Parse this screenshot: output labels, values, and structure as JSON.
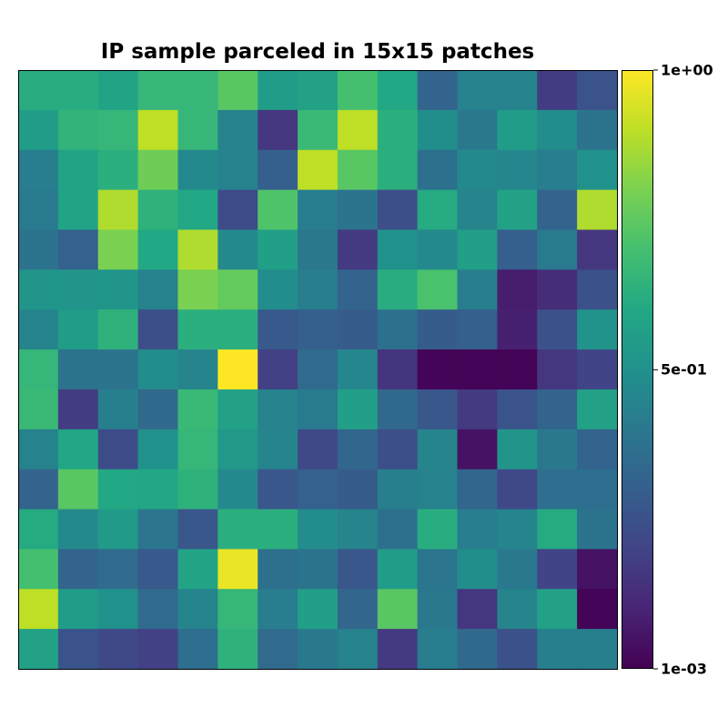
{
  "chart_data": {
    "type": "heatmap",
    "title": "IP sample parceled in 15x15 patches",
    "colormap": "viridis",
    "rows": 15,
    "cols": 15,
    "vmin": 0.001,
    "vmax": 1.0,
    "colorbar": {
      "position": "right",
      "ticks": [
        {
          "value": 1.0,
          "label": "1e+00"
        },
        {
          "value": 0.5,
          "label": "5e-01"
        },
        {
          "value": 0.001,
          "label": "1e-03"
        }
      ]
    },
    "values": [
      [
        0.62,
        0.62,
        0.58,
        0.66,
        0.66,
        0.74,
        0.55,
        0.57,
        0.7,
        0.6,
        0.32,
        0.44,
        0.44,
        0.18,
        0.26
      ],
      [
        0.55,
        0.65,
        0.66,
        0.9,
        0.66,
        0.44,
        0.16,
        0.67,
        0.9,
        0.63,
        0.49,
        0.4,
        0.55,
        0.48,
        0.38
      ],
      [
        0.42,
        0.58,
        0.63,
        0.78,
        0.47,
        0.44,
        0.3,
        0.9,
        0.74,
        0.63,
        0.37,
        0.47,
        0.46,
        0.42,
        0.5
      ],
      [
        0.41,
        0.58,
        0.88,
        0.64,
        0.6,
        0.23,
        0.72,
        0.42,
        0.38,
        0.24,
        0.61,
        0.45,
        0.57,
        0.32,
        0.88
      ],
      [
        0.38,
        0.31,
        0.8,
        0.6,
        0.88,
        0.47,
        0.56,
        0.4,
        0.17,
        0.5,
        0.47,
        0.56,
        0.3,
        0.41,
        0.16
      ],
      [
        0.52,
        0.52,
        0.52,
        0.44,
        0.8,
        0.76,
        0.48,
        0.42,
        0.32,
        0.62,
        0.71,
        0.42,
        0.08,
        0.13,
        0.25
      ],
      [
        0.45,
        0.55,
        0.64,
        0.24,
        0.63,
        0.63,
        0.28,
        0.3,
        0.29,
        0.37,
        0.29,
        0.3,
        0.09,
        0.25,
        0.51
      ],
      [
        0.66,
        0.38,
        0.38,
        0.48,
        0.45,
        1.0,
        0.19,
        0.35,
        0.46,
        0.15,
        0.01,
        0.01,
        0.01,
        0.16,
        0.2
      ],
      [
        0.67,
        0.18,
        0.43,
        0.34,
        0.67,
        0.57,
        0.44,
        0.41,
        0.56,
        0.34,
        0.27,
        0.17,
        0.26,
        0.32,
        0.57
      ],
      [
        0.44,
        0.59,
        0.23,
        0.5,
        0.66,
        0.53,
        0.45,
        0.22,
        0.33,
        0.24,
        0.45,
        0.05,
        0.52,
        0.4,
        0.32
      ],
      [
        0.32,
        0.74,
        0.6,
        0.59,
        0.64,
        0.47,
        0.27,
        0.31,
        0.29,
        0.43,
        0.44,
        0.33,
        0.22,
        0.36,
        0.36
      ],
      [
        0.61,
        0.47,
        0.54,
        0.39,
        0.27,
        0.63,
        0.63,
        0.48,
        0.45,
        0.37,
        0.62,
        0.42,
        0.45,
        0.61,
        0.38
      ],
      [
        0.7,
        0.32,
        0.35,
        0.28,
        0.58,
        0.97,
        0.37,
        0.38,
        0.27,
        0.55,
        0.39,
        0.49,
        0.4,
        0.2,
        0.05
      ],
      [
        0.9,
        0.55,
        0.5,
        0.35,
        0.45,
        0.66,
        0.42,
        0.56,
        0.33,
        0.74,
        0.4,
        0.16,
        0.45,
        0.57,
        0.01
      ],
      [
        0.57,
        0.26,
        0.22,
        0.19,
        0.36,
        0.64,
        0.35,
        0.4,
        0.44,
        0.17,
        0.42,
        0.34,
        0.25,
        0.43,
        0.43
      ]
    ]
  }
}
